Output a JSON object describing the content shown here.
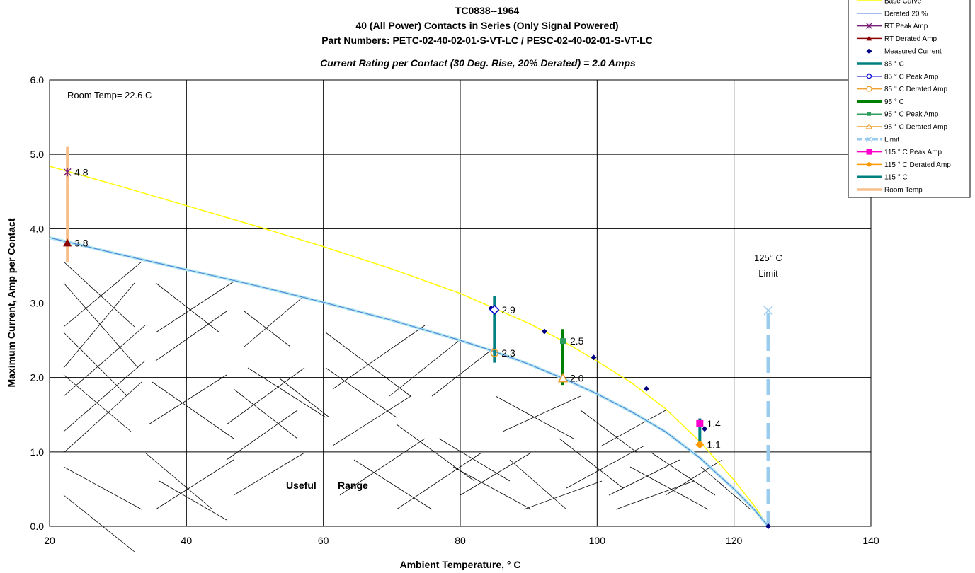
{
  "chart_data": {
    "type": "line",
    "title_lines": [
      "TC0838--1964",
      "40 (All Power) Contacts in Series (Only Signal Powered)",
      "Part Numbers: PETC-02-40-02-01-S-VT-LC / PESC-02-40-02-01-S-VT-LC"
    ],
    "subtitle": "Current Rating per Contact (30 Deg. Rise, 20% Derated)  =  2.0 Amps",
    "xlabel": "Ambient Temperature,  ° C",
    "ylabel": "Maximum Current, Amp per Contact",
    "xlim": [
      20,
      140
    ],
    "ylim": [
      0,
      6
    ],
    "x_ticks": [
      "20",
      "40",
      "60",
      "80",
      "100",
      "120",
      "140"
    ],
    "y_ticks": [
      "0.0",
      "1.0",
      "2.0",
      "3.0",
      "4.0",
      "5.0",
      "6.0"
    ],
    "grid": true,
    "legend_position": "top-right",
    "legend": [
      {
        "label": "Base Curve",
        "color": "#ffff00",
        "style": "line"
      },
      {
        "label": "Derated 20 %",
        "color": "#4a7bd8",
        "style": "line"
      },
      {
        "label": "RT Peak Amp",
        "color": "#7a1f7a",
        "style": "star"
      },
      {
        "label": "RT Derated Amp",
        "color": "#8b0000",
        "style": "triangle"
      },
      {
        "label": "Measured Current",
        "color": "#000080",
        "style": "diamond-marker"
      },
      {
        "label": "85 ° C",
        "color": "#008080",
        "style": "thick"
      },
      {
        "label": "85  ° C Peak Amp",
        "color": "#0000cc",
        "style": "diamond-open"
      },
      {
        "label": "85  ° C Derated Amp",
        "color": "#f0a030",
        "style": "circle-open"
      },
      {
        "label": "95  ° C",
        "color": "#008000",
        "style": "thick"
      },
      {
        "label": "95  ° C Peak Amp",
        "color": "#2e9e5e",
        "style": "square-small"
      },
      {
        "label": "95  ° C Derated Amp",
        "color": "#f0a030",
        "style": "triangle-open"
      },
      {
        "label": "Limit",
        "color": "#99ccee",
        "style": "dashed"
      },
      {
        "label": "115  ° C Peak Amp",
        "color": "#ff00cc",
        "style": "square"
      },
      {
        "label": "115  ° C Derated Amp",
        "color": "#ff9900",
        "style": "diamond-orange"
      },
      {
        "label": "115  ° C",
        "color": "#008080",
        "style": "thick"
      },
      {
        "label": "Room Temp",
        "color": "#f7c08a",
        "style": "thick"
      }
    ],
    "series": [
      {
        "name": "Base Curve",
        "color": "#ffff00",
        "points": [
          [
            20,
            4.84
          ],
          [
            30,
            4.58
          ],
          [
            40,
            4.31
          ],
          [
            50,
            4.04
          ],
          [
            60,
            3.76
          ],
          [
            70,
            3.46
          ],
          [
            80,
            3.13
          ],
          [
            85,
            2.93
          ],
          [
            90,
            2.73
          ],
          [
            95,
            2.49
          ],
          [
            100,
            2.22
          ],
          [
            105,
            1.93
          ],
          [
            110,
            1.58
          ],
          [
            115,
            1.14
          ],
          [
            120,
            0.62
          ],
          [
            123,
            0.27
          ],
          [
            125,
            0.0
          ]
        ]
      },
      {
        "name": "Derated 20 %",
        "color": "#4a7bd8",
        "points": [
          [
            20,
            3.88
          ],
          [
            30,
            3.66
          ],
          [
            40,
            3.45
          ],
          [
            50,
            3.24
          ],
          [
            60,
            3.01
          ],
          [
            70,
            2.77
          ],
          [
            80,
            2.5
          ],
          [
            85,
            2.35
          ],
          [
            90,
            2.18
          ],
          [
            95,
            1.99
          ],
          [
            100,
            1.78
          ],
          [
            105,
            1.54
          ],
          [
            110,
            1.27
          ],
          [
            115,
            0.92
          ],
          [
            120,
            0.5
          ],
          [
            123,
            0.22
          ],
          [
            125,
            0.0
          ]
        ]
      },
      {
        "name": "Limit",
        "color": "#99ccee",
        "points": [
          [
            125,
            0.0
          ],
          [
            125,
            2.9
          ]
        ]
      }
    ],
    "measured_current": [
      [
        84.5,
        2.93
      ],
      [
        92.3,
        2.62
      ],
      [
        99.5,
        2.27
      ],
      [
        107.2,
        1.85
      ],
      [
        115.7,
        1.31
      ],
      [
        125,
        0.0
      ]
    ],
    "vertical_bars": [
      {
        "name": "Room Temp",
        "x": 22.6,
        "y_range": [
          3.55,
          5.1
        ],
        "color": "#f7c08a"
      },
      {
        "name": "85 ° C",
        "x": 85,
        "y_range": [
          2.2,
          3.1
        ],
        "color": "#008080"
      },
      {
        "name": "95  ° C",
        "x": 95,
        "y_range": [
          1.9,
          2.65
        ],
        "color": "#008000"
      },
      {
        "name": "115  ° C",
        "x": 115,
        "y_range": [
          1.08,
          1.45
        ],
        "color": "#008080"
      }
    ],
    "markers": [
      {
        "name": "RT Peak Amp",
        "x": 22.6,
        "y": 4.76,
        "label": "4.8",
        "shape": "star",
        "color": "#7a1f7a"
      },
      {
        "name": "RT Derated Amp",
        "x": 22.6,
        "y": 3.81,
        "label": "3.8",
        "shape": "triangle",
        "color": "#8b0000"
      },
      {
        "name": "85  ° C Peak Amp",
        "x": 85,
        "y": 2.91,
        "label": "2.9",
        "shape": "diamond-open",
        "color": "#0000cc"
      },
      {
        "name": "85  ° C Derated Amp",
        "x": 85,
        "y": 2.33,
        "label": "2.3",
        "shape": "circle-open",
        "color": "#f0a030"
      },
      {
        "name": "95  ° C Peak Amp",
        "x": 95,
        "y": 2.49,
        "label": "2.5",
        "shape": "square-small",
        "color": "#2e9e5e"
      },
      {
        "name": "95  ° C Derated Amp",
        "x": 95,
        "y": 1.99,
        "label": "2.0",
        "shape": "triangle-open",
        "color": "#f0a030"
      },
      {
        "name": "115  ° C Peak Amp",
        "x": 115,
        "y": 1.38,
        "label": "1.4",
        "shape": "square",
        "color": "#ff00cc"
      },
      {
        "name": "115  ° C Derated Amp",
        "x": 115,
        "y": 1.1,
        "label": "1.1",
        "shape": "diamond-orange",
        "color": "#ff9900"
      }
    ],
    "annotations": {
      "room_temp": "Room Temp= 22.6 C",
      "limit_line1": "125° C",
      "limit_line2": "Limit",
      "useful_word1": "Useful",
      "useful_word2": "Range"
    }
  }
}
